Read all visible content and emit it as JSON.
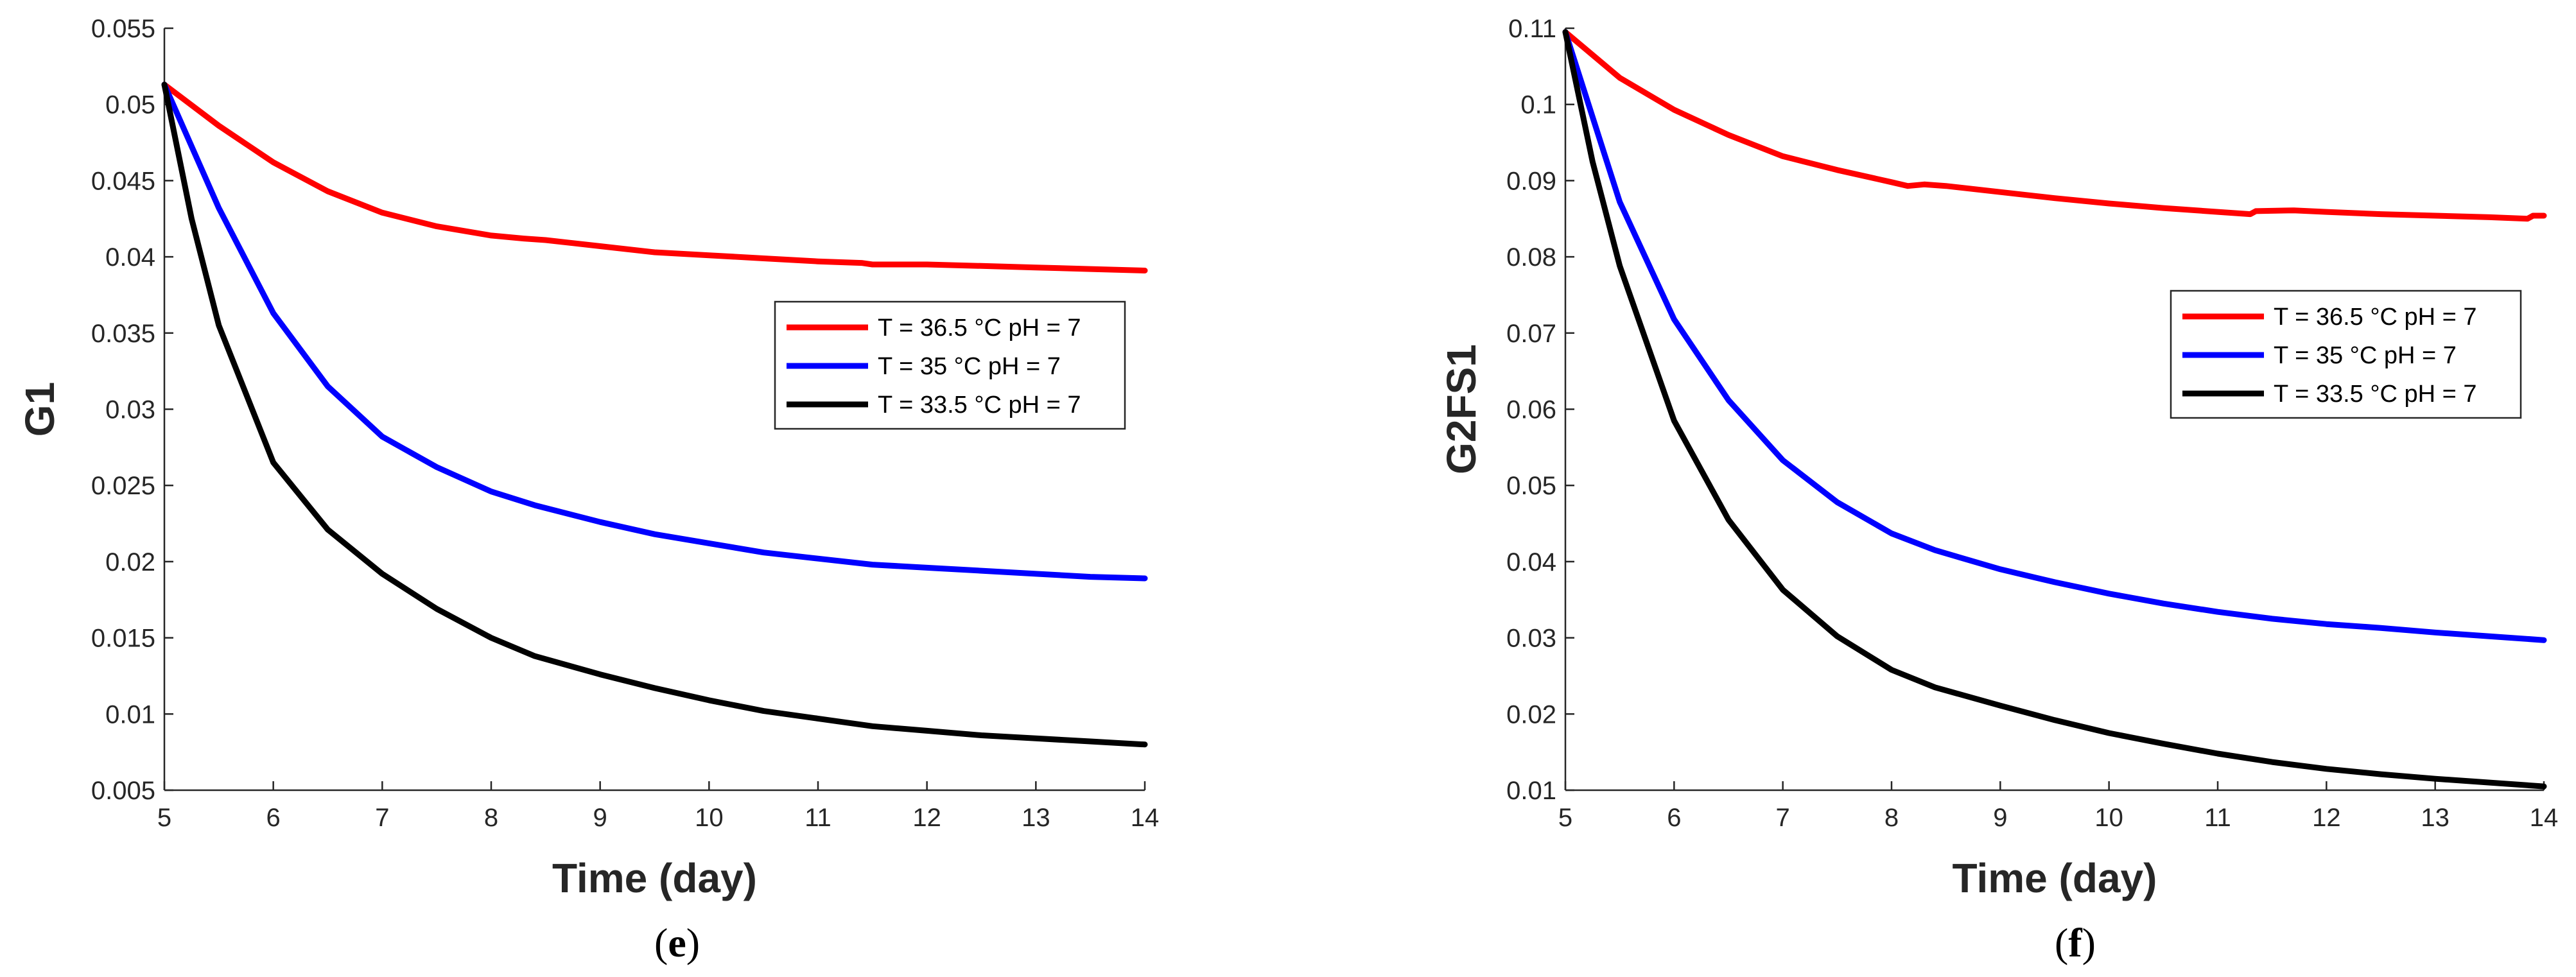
{
  "chart_data": [
    {
      "type": "line",
      "panel": "e",
      "title": "",
      "xlabel": "Time (day)",
      "ylabel": "G1",
      "xlim": [
        5,
        14
      ],
      "ylim": [
        0.005,
        0.055
      ],
      "xticks": [
        5,
        6,
        7,
        8,
        9,
        10,
        11,
        12,
        13,
        14
      ],
      "xtick_labels": [
        "5",
        "6",
        "7",
        "8",
        "9",
        "10",
        "11",
        "12",
        "13",
        "14"
      ],
      "yticks": [
        0.005,
        0.01,
        0.015,
        0.02,
        0.025,
        0.03,
        0.035,
        0.04,
        0.045,
        0.05,
        0.055
      ],
      "ytick_labels": [
        "0.005",
        "0.01",
        "0.015",
        "0.02",
        "0.025",
        "0.03",
        "0.035",
        "0.04",
        "0.045",
        "0.05",
        "0.055"
      ],
      "legend_position": "right-middle",
      "caption": "(e)",
      "caption_letter": "e",
      "series": [
        {
          "name": "T = 36.5 °C pH = 7",
          "color": "#ff0000",
          "x": [
            5,
            5.5,
            6,
            6.5,
            7,
            7.5,
            8,
            8.3,
            8.5,
            9,
            9.5,
            10,
            10.5,
            11,
            11.4,
            11.5,
            12,
            12.5,
            13,
            13.5,
            14
          ],
          "y": [
            0.0513,
            0.0486,
            0.0462,
            0.0443,
            0.0429,
            0.042,
            0.0414,
            0.0412,
            0.0411,
            0.0407,
            0.0403,
            0.0401,
            0.0399,
            0.0397,
            0.0396,
            0.0395,
            0.0395,
            0.0394,
            0.0393,
            0.0392,
            0.0391
          ]
        },
        {
          "name": "T = 35 °C pH = 7",
          "color": "#0000ff",
          "x": [
            5,
            5.5,
            6,
            6.5,
            7,
            7.5,
            8,
            8.4,
            9,
            9.5,
            10,
            10.5,
            11,
            11.5,
            12,
            12.5,
            13,
            13.5,
            14
          ],
          "y": [
            0.0513,
            0.0432,
            0.0363,
            0.0315,
            0.0282,
            0.0262,
            0.0246,
            0.0237,
            0.0226,
            0.0218,
            0.0212,
            0.0206,
            0.0202,
            0.0198,
            0.0196,
            0.0194,
            0.0192,
            0.019,
            0.0189
          ]
        },
        {
          "name": "T = 33.5 °C pH = 7",
          "color": "#000000",
          "x": [
            5,
            5.25,
            5.5,
            6,
            6.5,
            7,
            7.5,
            8,
            8.4,
            9,
            9.5,
            10,
            10.5,
            11,
            11.5,
            12,
            12.5,
            13,
            13.5,
            14
          ],
          "y": [
            0.0513,
            0.0425,
            0.0355,
            0.0265,
            0.0221,
            0.0192,
            0.0169,
            0.015,
            0.0138,
            0.0126,
            0.0117,
            0.0109,
            0.0102,
            0.0097,
            0.0092,
            0.0089,
            0.0086,
            0.0084,
            0.0082,
            0.008
          ]
        }
      ]
    },
    {
      "type": "line",
      "panel": "f",
      "title": "",
      "xlabel": "Time (day)",
      "ylabel": "G2FS1",
      "xlim": [
        5,
        14
      ],
      "ylim": [
        0.01,
        0.11
      ],
      "xticks": [
        5,
        6,
        7,
        8,
        9,
        10,
        11,
        12,
        13,
        14
      ],
      "xtick_labels": [
        "5",
        "6",
        "7",
        "8",
        "9",
        "10",
        "11",
        "12",
        "13",
        "14"
      ],
      "yticks": [
        0.01,
        0.02,
        0.03,
        0.04,
        0.05,
        0.06,
        0.07,
        0.08,
        0.09,
        0.1,
        0.11
      ],
      "ytick_labels": [
        "0.01",
        "0.02",
        "0.03",
        "0.04",
        "0.05",
        "0.06",
        "0.07",
        "0.08",
        "0.09",
        "0.1",
        "0.11"
      ],
      "legend_position": "right-middle",
      "caption": "(f)",
      "caption_letter": "f",
      "series": [
        {
          "name": "T = 36.5 °C pH = 7",
          "color": "#ff0000",
          "x": [
            5,
            5.5,
            6,
            6.5,
            7,
            7.5,
            8,
            8.15,
            8.3,
            8.5,
            9,
            9.5,
            10,
            10.5,
            11,
            11.3,
            11.35,
            11.7,
            12,
            12.5,
            13,
            13.5,
            13.85,
            13.9,
            14
          ],
          "y": [
            0.1095,
            0.1035,
            0.0993,
            0.096,
            0.0932,
            0.0914,
            0.0898,
            0.0893,
            0.0895,
            0.0893,
            0.0885,
            0.0877,
            0.087,
            0.0864,
            0.0859,
            0.0856,
            0.086,
            0.0861,
            0.0859,
            0.0856,
            0.0854,
            0.0852,
            0.085,
            0.0854,
            0.0854
          ]
        },
        {
          "name": "T = 35 °C pH = 7",
          "color": "#0000ff",
          "x": [
            5,
            5.5,
            6,
            6.5,
            7,
            7.5,
            8,
            8.4,
            9,
            9.5,
            10,
            10.5,
            11,
            11.5,
            12,
            12.5,
            13,
            13.5,
            14
          ],
          "y": [
            0.1095,
            0.0872,
            0.0718,
            0.0612,
            0.0533,
            0.0478,
            0.0437,
            0.0415,
            0.039,
            0.0373,
            0.0358,
            0.0345,
            0.0334,
            0.0325,
            0.0318,
            0.0313,
            0.0307,
            0.0302,
            0.0297
          ]
        },
        {
          "name": "T = 33.5 °C pH = 7",
          "color": "#000000",
          "x": [
            5,
            5.25,
            5.5,
            6,
            6.5,
            7,
            7.5,
            8,
            8.4,
            9,
            9.5,
            10,
            10.5,
            11,
            11.5,
            12,
            12.5,
            13,
            13.5,
            14
          ],
          "y": [
            0.1095,
            0.0925,
            0.0788,
            0.0585,
            0.0455,
            0.0363,
            0.0302,
            0.0258,
            0.0235,
            0.0211,
            0.0192,
            0.0175,
            0.0161,
            0.0148,
            0.0137,
            0.0128,
            0.0121,
            0.0115,
            0.011,
            0.0105
          ]
        }
      ]
    }
  ]
}
